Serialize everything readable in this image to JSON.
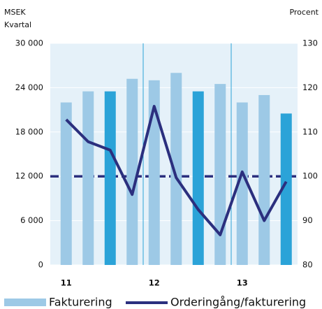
{
  "chart_data": {
    "type": "bar_line",
    "y_label": "MSEK",
    "x_label": "Kvartal",
    "y2_label": "Procent",
    "categories": [
      "11",
      null,
      null,
      null,
      "12",
      null,
      null,
      null,
      "13",
      null,
      null
    ],
    "series": [
      {
        "name": "Fakturering",
        "type": "bar",
        "color": "#9dc9e6",
        "colors": [
          "#9dc9e6",
          "#9dc9e6",
          "#2ba3d8",
          "#9dc9e6",
          "#9dc9e6",
          "#9dc9e6",
          "#2ba3d8",
          "#9dc9e6",
          "#9dc9e6",
          "#9dc9e6",
          "#2ba3d8"
        ],
        "values": [
          22000,
          23500,
          23500,
          25200,
          25000,
          26000,
          23500,
          24500,
          22000,
          23000,
          20500
        ]
      },
      {
        "name": "Orderingång/fakturering",
        "type": "line",
        "axis": "y2",
        "color": "#2b2f7e",
        "values": [
          112.8,
          107.8,
          105.9,
          95.9,
          115.8,
          99.7,
          92.5,
          86.8,
          101,
          90,
          98.8
        ]
      }
    ],
    "y2_reference": 100,
    "ylim": [
      0,
      30000
    ],
    "yticks": [
      0,
      {
        "value": 6000,
        "label": "6 000"
      },
      {
        "value": 12000,
        "label": "12 000"
      },
      {
        "value": 18000,
        "label": "18 000"
      },
      {
        "value": 24000,
        "label": "24 000"
      },
      {
        "value": 30000,
        "label": "30 000"
      }
    ],
    "y2lim": [
      80,
      130
    ],
    "y2ticks": [
      80,
      90,
      100,
      110,
      120,
      130
    ],
    "grid": true
  }
}
